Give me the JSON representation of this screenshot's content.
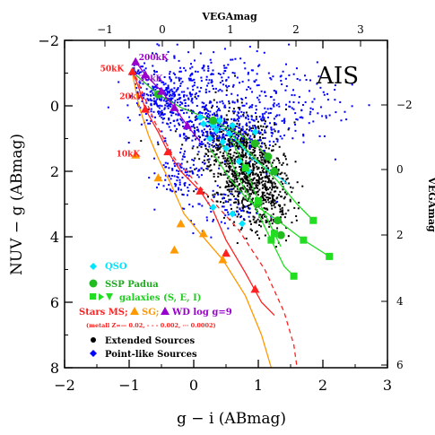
{
  "chart_data": {
    "type": "scatter",
    "title": "AIS",
    "xlabel": "g − i (ABmag)",
    "ylabel": "NUV − g (ABmag)",
    "top_axis_label": "VEGAmag",
    "right_axis_label": "VEGAmag",
    "xlim": [
      -2,
      3
    ],
    "ylim": [
      8,
      -2
    ],
    "x_ticks": [
      "−2",
      "−1",
      "0",
      "1",
      "2",
      "3"
    ],
    "y_ticks": [
      "−2",
      "0",
      "2",
      "4",
      "6",
      "8"
    ],
    "top_ticks": [
      "−1",
      "0",
      "1",
      "2",
      "3"
    ],
    "right_ticks": [
      "−2",
      "0",
      "2",
      "4",
      "6"
    ],
    "grid": false,
    "legend_position": "bottom-left",
    "legend": [
      {
        "label": "QSO",
        "color": "#00e5ff",
        "marker": "diamond"
      },
      {
        "label": "SSP Padua",
        "color": "#22bb22",
        "marker": "circle"
      },
      {
        "label": "galaxies (S, E, I)",
        "color": "#22dd22",
        "marker": "square-triangle"
      },
      {
        "label": "Stars MS;",
        "color": "#ff2020",
        "marker": "triangle"
      },
      {
        "label": "SG;",
        "color": "#ff9900",
        "marker": "triangle"
      },
      {
        "label": "WD log g=9",
        "color": "#9900cc",
        "marker": "triangle"
      },
      {
        "label": "(metall Z=— 0.02, - - - 0.002, ··· 0.0002)",
        "color": "#ff2020",
        "marker": "none"
      },
      {
        "label": "Extended Sources",
        "color": "#000000",
        "marker": "dot"
      },
      {
        "label": "Point-like Sources",
        "color": "#0000ff",
        "marker": "dot"
      }
    ],
    "annotations": [
      {
        "text": "200kK",
        "x": -0.85,
        "y": -1.4,
        "color": "#9900cc"
      },
      {
        "text": "50kK",
        "x": -1.45,
        "y": -1.05,
        "color": "#ff2020"
      },
      {
        "text": "30kK",
        "x": -0.85,
        "y": -0.75,
        "color": "#9900cc"
      },
      {
        "text": "20kK",
        "x": -1.15,
        "y": -0.2,
        "color": "#ff2020"
      },
      {
        "text": "10kK",
        "x": -1.2,
        "y": 1.55,
        "color": "#ff2020"
      }
    ],
    "series": [
      {
        "name": "Extended Sources",
        "type": "scatter",
        "color": "#000000",
        "clusters": [
          {
            "cx": 0.8,
            "cy": 1.9,
            "sx": 0.28,
            "sy": 0.7,
            "n": 700
          },
          {
            "cx": 1.15,
            "cy": 2.9,
            "sx": 0.2,
            "sy": 0.6,
            "n": 220
          },
          {
            "cx": 0.5,
            "cy": 1.0,
            "sx": 0.35,
            "sy": 0.45,
            "n": 160
          }
        ]
      },
      {
        "name": "Point-like Sources",
        "type": "scatter",
        "color": "#0000ff",
        "clusters": [
          {
            "cx": 0.35,
            "cy": 0.55,
            "sx": 0.45,
            "sy": 0.45,
            "n": 420
          },
          {
            "cx": -0.5,
            "cy": -0.2,
            "sx": 0.2,
            "sy": 0.35,
            "n": 230
          },
          {
            "cx": 0.2,
            "cy": -0.9,
            "sx": 0.45,
            "sy": 0.45,
            "n": 150
          },
          {
            "cx": 1.4,
            "cy": 0.0,
            "sx": 0.5,
            "sy": 0.6,
            "n": 150
          },
          {
            "cx": -0.25,
            "cy": 2.1,
            "sx": 0.18,
            "sy": 0.3,
            "n": 90
          },
          {
            "cx": 0.45,
            "cy": 3.1,
            "sx": 0.3,
            "sy": 0.4,
            "n": 70
          },
          {
            "cx": -0.9,
            "cy": -1.1,
            "sx": 0.08,
            "sy": 0.12,
            "n": 25
          }
        ]
      },
      {
        "name": "QSO",
        "type": "scatter",
        "color": "#00e5ff",
        "points": [
          [
            0.15,
            0.55
          ],
          [
            0.3,
            0.6
          ],
          [
            0.35,
            0.75
          ],
          [
            0.55,
            0.85
          ],
          [
            0.25,
            1.0
          ],
          [
            0.6,
            0.6
          ],
          [
            0.45,
            1.1
          ],
          [
            0.5,
            1.3
          ],
          [
            0.7,
            1.7
          ],
          [
            0.85,
            2.0
          ],
          [
            0.3,
            3.1
          ],
          [
            0.6,
            3.3
          ],
          [
            0.75,
            3.6
          ],
          [
            0.95,
            0.8
          ],
          [
            0.1,
            0.35
          ],
          [
            0.4,
            0.45
          ]
        ],
        "line": [
          [
            0.2,
            0.5
          ],
          [
            0.55,
            0.8
          ],
          [
            0.9,
            1.6
          ],
          [
            1.4,
            2.3
          ],
          [
            1.45,
            2.4
          ]
        ]
      },
      {
        "name": "SSP Padua",
        "type": "line",
        "color": "#22bb22",
        "points": [
          [
            -0.9,
            -0.95
          ],
          [
            -0.55,
            -0.35
          ],
          [
            -0.2,
            0.05
          ],
          [
            0.3,
            0.45
          ],
          [
            0.6,
            0.75
          ],
          [
            0.95,
            1.15
          ],
          [
            1.15,
            1.55
          ],
          [
            1.2,
            1.8
          ],
          [
            1.25,
            2.0
          ]
        ]
      },
      {
        "name": "galaxies S",
        "type": "line",
        "color": "#22dd22",
        "points": [
          [
            0.55,
            0.9
          ],
          [
            0.8,
            1.9
          ],
          [
            1.0,
            2.9
          ],
          [
            1.25,
            3.9
          ],
          [
            1.35,
            4.3
          ]
        ]
      },
      {
        "name": "galaxies E",
        "type": "line",
        "color": "#22dd22",
        "points": [
          [
            0.45,
            1.2
          ],
          [
            0.75,
            2.4
          ],
          [
            0.95,
            3.1
          ],
          [
            1.2,
            4.1
          ],
          [
            1.4,
            4.9
          ],
          [
            1.55,
            5.2
          ]
        ]
      },
      {
        "name": "galaxies I",
        "type": "line",
        "color": "#22dd22",
        "points": [
          [
            0.25,
            1.3
          ],
          [
            0.55,
            2.2
          ],
          [
            0.85,
            2.9
          ],
          [
            1.3,
            3.5
          ],
          [
            1.7,
            4.1
          ],
          [
            2.1,
            4.6
          ]
        ]
      },
      {
        "name": "galaxies I2",
        "type": "line",
        "color": "#22dd22",
        "points": [
          [
            0.6,
            0.9
          ],
          [
            0.95,
            1.6
          ],
          [
            1.3,
            2.3
          ],
          [
            1.6,
            3.0
          ],
          [
            1.85,
            3.5
          ]
        ]
      },
      {
        "name": "Stars MS Z=0.02",
        "type": "line",
        "color": "#ff2020",
        "points": [
          [
            -0.95,
            -1.05
          ],
          [
            -0.85,
            -0.55
          ],
          [
            -0.75,
            0.1
          ],
          [
            -0.55,
            0.8
          ],
          [
            -0.4,
            1.4
          ],
          [
            -0.2,
            2.0
          ],
          [
            0.1,
            2.6
          ],
          [
            0.3,
            3.2
          ],
          [
            0.5,
            4.1
          ],
          [
            0.8,
            5.1
          ],
          [
            1.05,
            6.0
          ],
          [
            1.25,
            6.4
          ]
        ]
      },
      {
        "name": "Stars MS Z=0.002",
        "type": "line",
        "color": "#ff2020",
        "dash": "dashed",
        "points": [
          [
            -0.9,
            -0.9
          ],
          [
            -0.6,
            0.5
          ],
          [
            -0.3,
            1.6
          ],
          [
            0.2,
            2.7
          ],
          [
            0.7,
            3.8
          ],
          [
            1.1,
            5.0
          ],
          [
            1.4,
            6.3
          ],
          [
            1.55,
            7.3
          ],
          [
            1.6,
            8.0
          ]
        ]
      },
      {
        "name": "Stars SG",
        "type": "line",
        "color": "#ff9900",
        "points": [
          [
            -0.95,
            -1.0
          ],
          [
            -0.85,
            0.0
          ],
          [
            -0.7,
            0.9
          ],
          [
            -0.55,
            1.6
          ],
          [
            -0.35,
            2.4
          ],
          [
            -0.15,
            3.3
          ],
          [
            0.1,
            3.9
          ],
          [
            0.45,
            4.7
          ],
          [
            0.8,
            5.8
          ],
          [
            1.05,
            7.0
          ],
          [
            1.2,
            8.0
          ]
        ]
      },
      {
        "name": "WD log g=9",
        "type": "line",
        "color": "#9900cc",
        "points": [
          [
            -0.9,
            -1.35
          ],
          [
            -0.75,
            -0.95
          ],
          [
            -0.5,
            -0.45
          ],
          [
            -0.3,
            0.05
          ],
          [
            -0.1,
            0.6
          ],
          [
            0.1,
            1.1
          ]
        ]
      }
    ],
    "markers": [
      {
        "series": "SSP Padua",
        "symbol": "circle",
        "color": "#22bb22",
        "points": [
          [
            -0.55,
            -0.35
          ],
          [
            0.3,
            0.45
          ],
          [
            0.95,
            1.15
          ],
          [
            1.15,
            1.55
          ],
          [
            1.25,
            2.0
          ],
          [
            1.0,
            2.95
          ],
          [
            1.3,
            3.5
          ],
          [
            1.35,
            3.95
          ]
        ]
      },
      {
        "series": "galaxies",
        "symbol": "square",
        "color": "#22dd22",
        "points": [
          [
            0.8,
            1.9
          ],
          [
            1.0,
            2.9
          ],
          [
            1.25,
            3.9
          ],
          [
            1.2,
            4.1
          ],
          [
            1.55,
            5.2
          ],
          [
            1.7,
            4.1
          ],
          [
            2.1,
            4.6
          ],
          [
            1.85,
            3.5
          ]
        ]
      },
      {
        "series": "Stars MS",
        "symbol": "triangle",
        "color": "#ff2020",
        "points": [
          [
            -0.95,
            -1.05
          ],
          [
            -0.75,
            0.1
          ],
          [
            -0.4,
            1.4
          ],
          [
            0.1,
            2.6
          ],
          [
            0.5,
            4.5
          ],
          [
            0.95,
            5.6
          ]
        ]
      },
      {
        "series": "Stars SG",
        "symbol": "triangle",
        "color": "#ff9900",
        "points": [
          [
            -0.9,
            1.5
          ],
          [
            -0.55,
            2.2
          ],
          [
            -0.2,
            3.6
          ],
          [
            0.15,
            3.9
          ],
          [
            0.45,
            4.7
          ],
          [
            -0.3,
            4.4
          ]
        ]
      },
      {
        "series": "WD",
        "symbol": "triangle",
        "color": "#9900cc",
        "points": [
          [
            -0.9,
            -1.35
          ],
          [
            -0.75,
            -0.95
          ],
          [
            -0.5,
            -0.45
          ],
          [
            -0.3,
            0.05
          ],
          [
            -0.1,
            0.6
          ]
        ]
      }
    ]
  }
}
